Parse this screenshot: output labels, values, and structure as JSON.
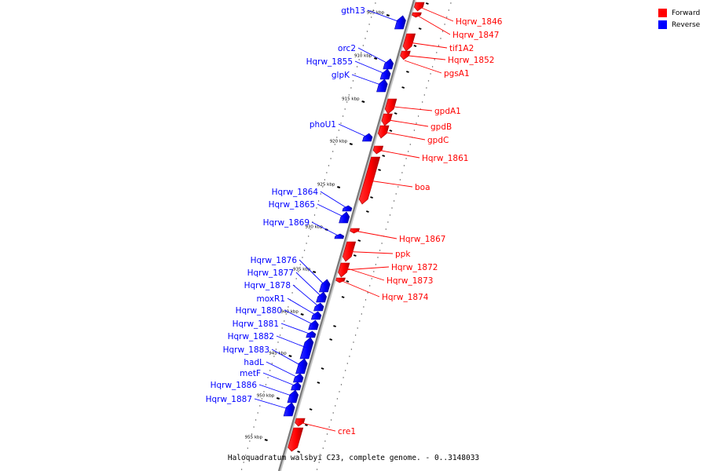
{
  "legend": {
    "forward": {
      "label": "Forward",
      "color": "#ff0000"
    },
    "reverse": {
      "label": "Reverse",
      "color": "#0000ff"
    }
  },
  "caption": "Haloquadratum walsbyi C23, complete genome. - 0..3148033",
  "scale": {
    "ticks": [
      {
        "label": "905 kbp"
      },
      {
        "label": "910 kbp"
      },
      {
        "label": "915 kbp"
      },
      {
        "label": "920 kbp"
      },
      {
        "label": "925 kbp"
      },
      {
        "label": "930 kbp"
      },
      {
        "label": "935 kbp"
      },
      {
        "label": "940 kbp"
      },
      {
        "label": "945 kbp"
      },
      {
        "label": "950 kbp"
      },
      {
        "label": "955 kbp"
      }
    ]
  },
  "genes": [
    {
      "name": "Hqrw_1846",
      "strand": "forward"
    },
    {
      "name": "Hqrw_1847",
      "strand": "forward"
    },
    {
      "name": "tif1A2",
      "strand": "forward"
    },
    {
      "name": "Hqrw_1852",
      "strand": "forward"
    },
    {
      "name": "pgsA1",
      "strand": "forward"
    },
    {
      "name": "gpdA1",
      "strand": "forward"
    },
    {
      "name": "gpdB",
      "strand": "forward"
    },
    {
      "name": "gpdC",
      "strand": "forward"
    },
    {
      "name": "Hqrw_1861",
      "strand": "forward"
    },
    {
      "name": "boa",
      "strand": "forward"
    },
    {
      "name": "Hqrw_1867",
      "strand": "forward"
    },
    {
      "name": "ppk",
      "strand": "forward"
    },
    {
      "name": "Hqrw_1872",
      "strand": "forward"
    },
    {
      "name": "Hqrw_1873",
      "strand": "forward"
    },
    {
      "name": "Hqrw_1874",
      "strand": "forward"
    },
    {
      "name": "cre1",
      "strand": "forward"
    },
    {
      "name": "gth13",
      "strand": "reverse"
    },
    {
      "name": "orc2",
      "strand": "reverse"
    },
    {
      "name": "Hqrw_1855",
      "strand": "reverse"
    },
    {
      "name": "glpK",
      "strand": "reverse"
    },
    {
      "name": "phoU1",
      "strand": "reverse"
    },
    {
      "name": "Hqrw_1864",
      "strand": "reverse"
    },
    {
      "name": "Hqrw_1865",
      "strand": "reverse"
    },
    {
      "name": "Hqrw_1869",
      "strand": "reverse"
    },
    {
      "name": "Hqrw_1876",
      "strand": "reverse"
    },
    {
      "name": "Hqrw_1877",
      "strand": "reverse"
    },
    {
      "name": "Hqrw_1878",
      "strand": "reverse"
    },
    {
      "name": "moxR1",
      "strand": "reverse"
    },
    {
      "name": "Hqrw_1880",
      "strand": "reverse"
    },
    {
      "name": "Hqrw_1881",
      "strand": "reverse"
    },
    {
      "name": "Hqrw_1882",
      "strand": "reverse"
    },
    {
      "name": "Hqrw_1883",
      "strand": "reverse"
    },
    {
      "name": "hadL",
      "strand": "reverse"
    },
    {
      "name": "metF",
      "strand": "reverse"
    },
    {
      "name": "Hqrw_1886",
      "strand": "reverse"
    },
    {
      "name": "Hqrw_1887",
      "strand": "reverse"
    }
  ]
}
